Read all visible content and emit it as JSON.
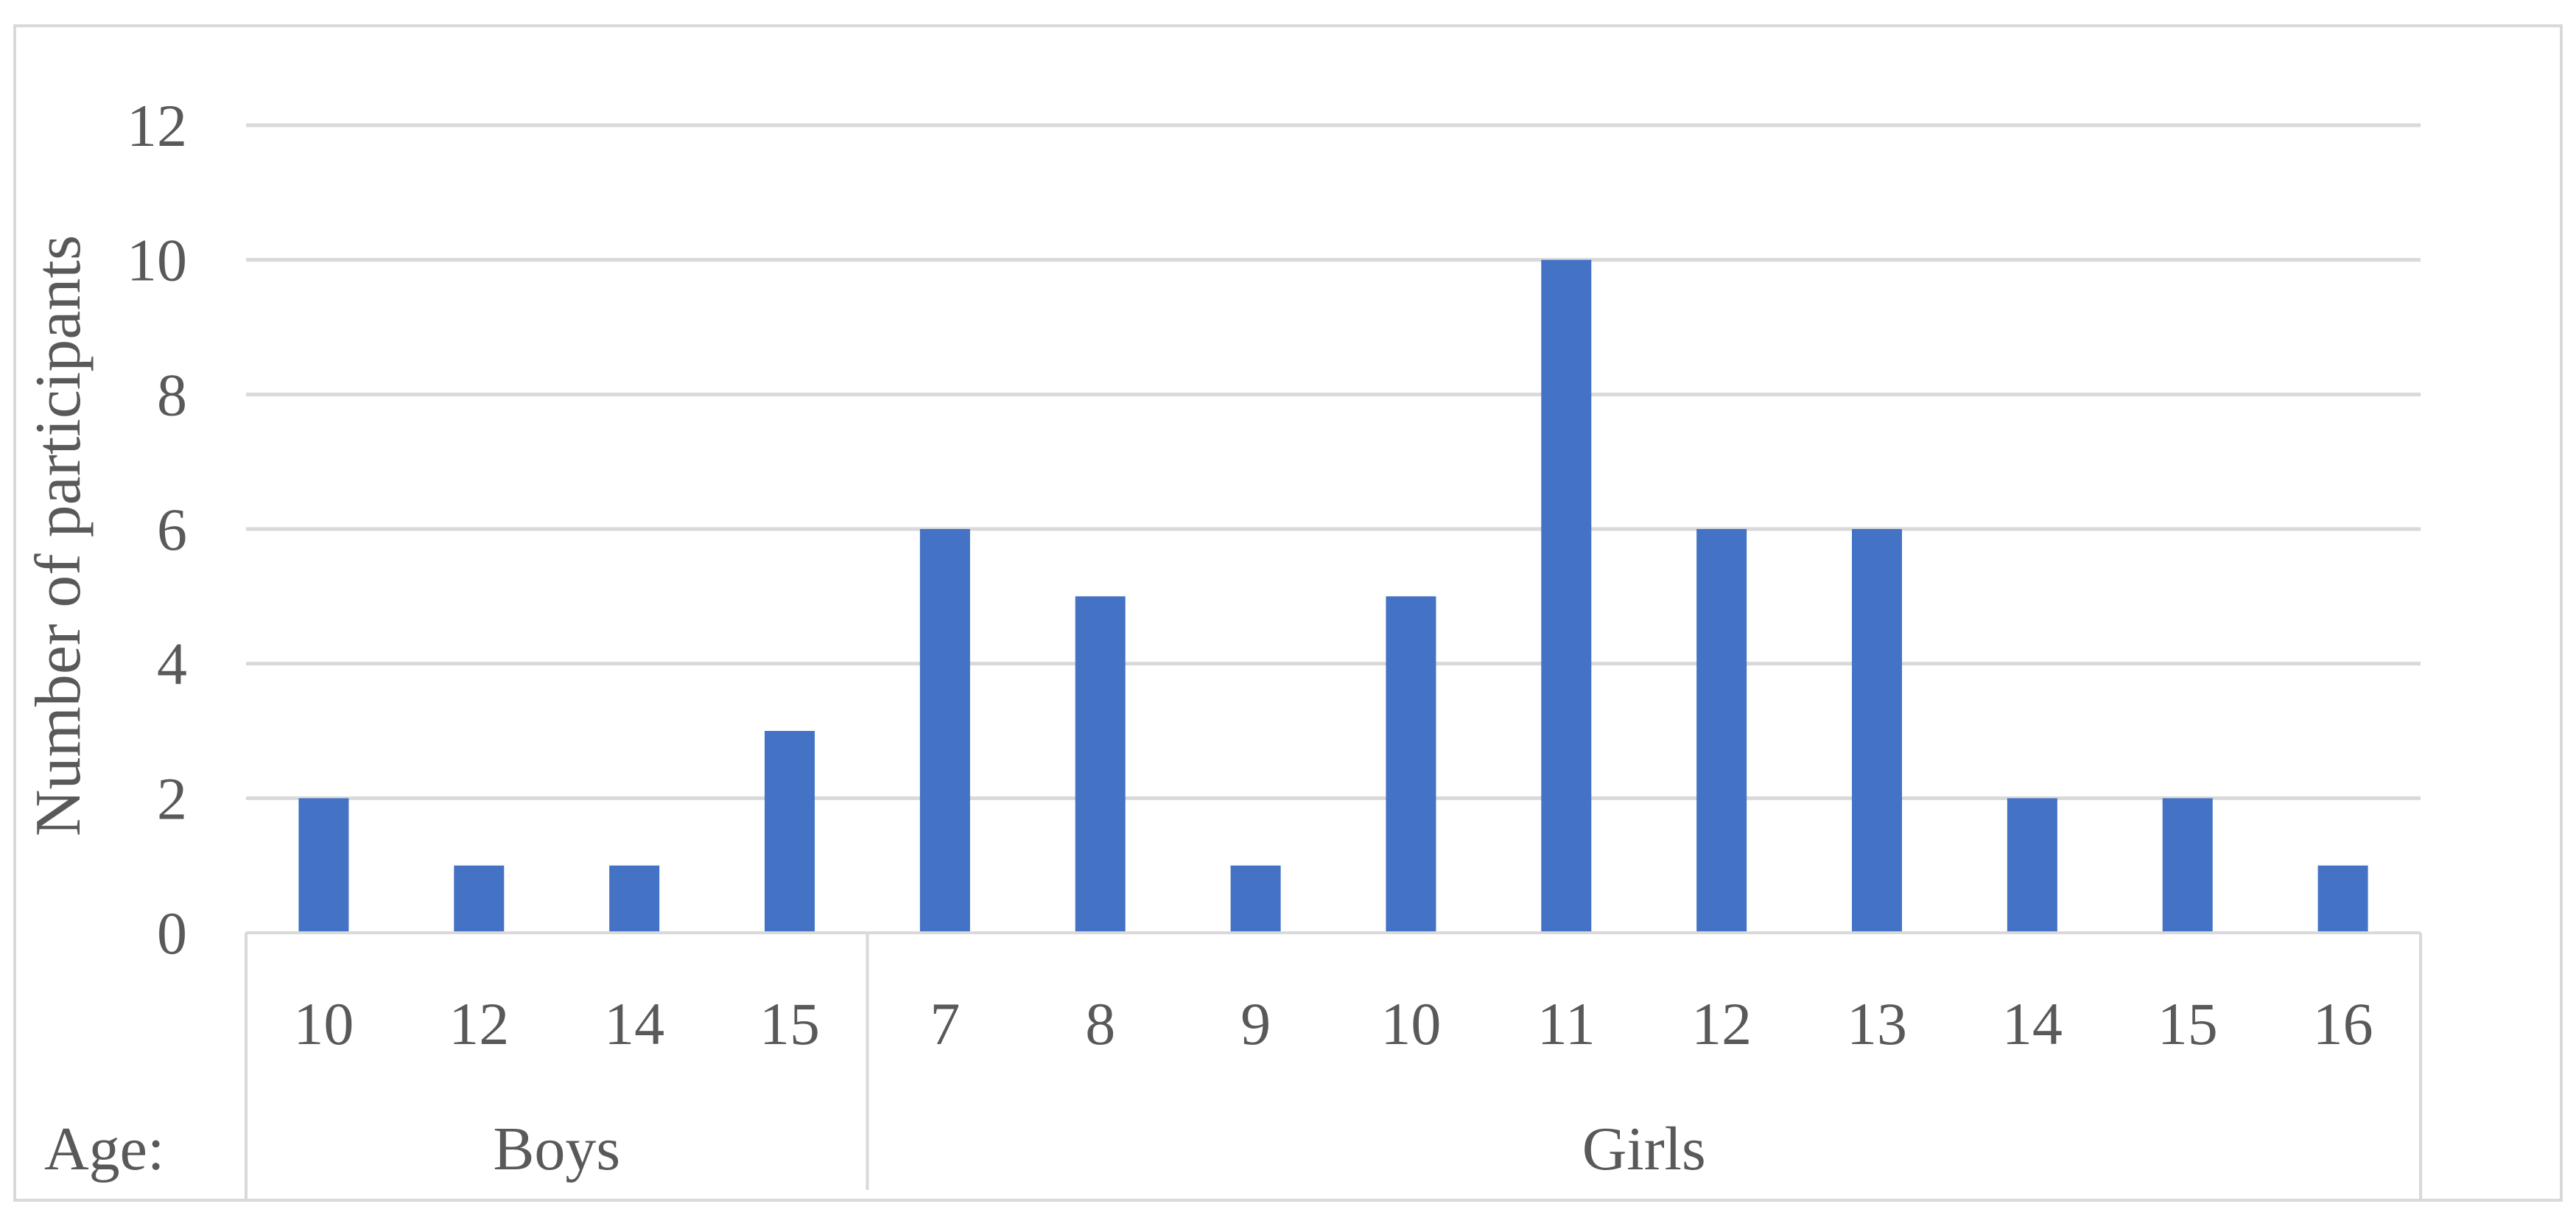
{
  "chart_data": {
    "type": "bar",
    "ylabel": "Number of participants",
    "xlabel": "Age:",
    "ylim": [
      0,
      12
    ],
    "yticks": [
      0,
      2,
      4,
      6,
      8,
      10,
      12
    ],
    "grid": true,
    "bar_color": "#4472C4",
    "groups": [
      {
        "name": "Boys",
        "categories": [
          "10",
          "12",
          "14",
          "15"
        ],
        "values": [
          2,
          1,
          1,
          3
        ]
      },
      {
        "name": "Girls",
        "categories": [
          "7",
          "8",
          "9",
          "10",
          "11",
          "12",
          "13",
          "14",
          "15",
          "16"
        ],
        "values": [
          6,
          5,
          1,
          5,
          10,
          6,
          6,
          2,
          2,
          1
        ]
      }
    ]
  }
}
